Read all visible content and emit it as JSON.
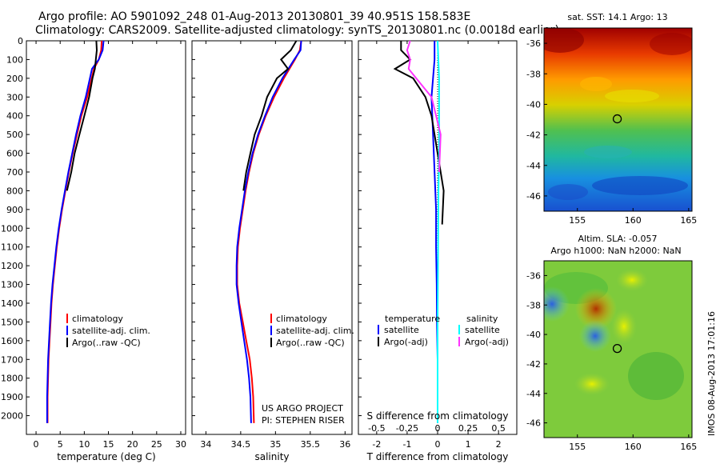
{
  "header": {
    "line1": "Argo profile: AO 5901092_248 01-Aug-2013 20130801_39 40.951S 158.583E",
    "line2": "Climatology: CARS2009. Satellite-adjusted climatology: synTS_20130801.nc (0.0018d earlier)"
  },
  "colors": {
    "climatology": "#ff0000",
    "satellite": "#0000ff",
    "argo": "#000000",
    "sal_satellite": "#00ffff",
    "sal_argo": "#ff33ff"
  },
  "legends": {
    "temperature": [
      "climatology",
      "satellite-adj. clim.",
      "Argo(..raw -QC)"
    ],
    "salinity": [
      "climatology",
      "satellite-adj. clim.",
      "Argo(..raw -QC)"
    ],
    "difference": {
      "temp_title": "temperature",
      "sal_title": "salinity",
      "temp_items": [
        "satellite",
        "Argo(-adj)"
      ],
      "sal_items": [
        "satellite",
        "Argo(-adj)"
      ]
    }
  },
  "notes": {
    "project": "US ARGO PROJECT",
    "pi": "PI: STEPHEN RISER",
    "s_diff_label": "S difference from climatology",
    "imos_stamp": "IMOS 08-Aug-2013 17:01:16"
  },
  "chart_data": [
    {
      "type": "line",
      "xlabel": "temperature (deg C)",
      "ylabel": "",
      "xlim": [
        -2,
        31
      ],
      "ylim": [
        2100,
        0
      ],
      "y_reversed": true,
      "xticks": [
        0,
        5,
        10,
        15,
        20,
        25,
        30
      ],
      "yticks": [
        0,
        100,
        200,
        300,
        400,
        500,
        600,
        700,
        800,
        900,
        1000,
        1100,
        1200,
        1300,
        1400,
        1500,
        1600,
        1700,
        1800,
        1900,
        2000
      ],
      "series": [
        {
          "name": "climatology",
          "color": "#ff0000",
          "x": [
            13.6,
            13.5,
            13.0,
            12.0,
            10.6,
            9.4,
            8.5,
            7.6,
            6.8,
            6.1,
            5.4,
            4.8,
            4.3,
            3.9,
            3.5,
            3.2,
            3.0,
            2.8,
            2.6,
            2.5,
            2.4,
            2.4
          ],
          "y": [
            0,
            50,
            100,
            150,
            300,
            400,
            500,
            600,
            700,
            800,
            900,
            1000,
            1100,
            1200,
            1300,
            1400,
            1500,
            1600,
            1700,
            1800,
            1900,
            2040
          ]
        },
        {
          "name": "satellite-adj. clim.",
          "color": "#0000ff",
          "x": [
            14.0,
            13.8,
            13.0,
            11.6,
            10.3,
            9.2,
            8.3,
            7.5,
            6.7,
            6.0,
            5.3,
            4.7,
            4.2,
            3.8,
            3.4,
            3.1,
            2.9,
            2.7,
            2.5,
            2.4,
            2.3,
            2.3
          ],
          "y": [
            0,
            50,
            100,
            150,
            300,
            400,
            500,
            600,
            700,
            800,
            900,
            1000,
            1100,
            1200,
            1300,
            1400,
            1500,
            1600,
            1700,
            1800,
            1900,
            2040
          ]
        },
        {
          "name": "Argo(..raw -QC)",
          "color": "#000000",
          "x": [
            12.5,
            12.6,
            12.4,
            12.2,
            11.7,
            11.0,
            10.0,
            9.0,
            8.0,
            7.3,
            6.4
          ],
          "y": [
            0,
            50,
            100,
            150,
            200,
            300,
            400,
            500,
            600,
            700,
            800
          ]
        }
      ]
    },
    {
      "type": "line",
      "xlabel": "salinity",
      "ylabel": "",
      "xlim": [
        33.8,
        36.1
      ],
      "ylim": [
        2100,
        0
      ],
      "y_reversed": true,
      "xticks": [
        34,
        34.5,
        35,
        35.5,
        36
      ],
      "series": [
        {
          "name": "climatology",
          "color": "#ff0000",
          "x": [
            35.37,
            35.35,
            35.28,
            35.12,
            34.98,
            34.86,
            34.76,
            34.68,
            34.62,
            34.57,
            34.53,
            34.49,
            34.46,
            34.45,
            34.45,
            34.48,
            34.53,
            34.58,
            34.63,
            34.66,
            34.68,
            34.69
          ],
          "y": [
            0,
            50,
            100,
            200,
            300,
            400,
            500,
            600,
            700,
            800,
            900,
            1000,
            1100,
            1200,
            1300,
            1400,
            1500,
            1600,
            1700,
            1800,
            1900,
            2040
          ]
        },
        {
          "name": "satellite-adj. clim.",
          "color": "#0000ff",
          "x": [
            35.37,
            35.36,
            35.27,
            35.1,
            34.96,
            34.85,
            34.75,
            34.67,
            34.61,
            34.56,
            34.52,
            34.48,
            34.45,
            34.44,
            34.44,
            34.47,
            34.51,
            34.55,
            34.59,
            34.62,
            34.64,
            34.65
          ],
          "y": [
            0,
            50,
            100,
            200,
            300,
            400,
            500,
            600,
            700,
            800,
            900,
            1000,
            1100,
            1200,
            1300,
            1400,
            1500,
            1600,
            1700,
            1800,
            1900,
            2040
          ]
        },
        {
          "name": "Argo(..raw -QC)",
          "color": "#000000",
          "x": [
            35.3,
            35.22,
            35.08,
            35.18,
            35.02,
            34.88,
            34.8,
            34.7,
            34.64,
            34.58,
            34.54
          ],
          "y": [
            0,
            50,
            100,
            150,
            200,
            300,
            400,
            500,
            600,
            700,
            800
          ]
        }
      ]
    },
    {
      "type": "line",
      "xlabel": "T difference from climatology",
      "ylabel": "",
      "xlim": [
        -2.6,
        2.6
      ],
      "ylim": [
        2100,
        0
      ],
      "y_reversed": true,
      "xticks": [
        -2,
        -1,
        0,
        1,
        2
      ],
      "secondary_xlabel": "S difference from climatology",
      "secondary_xticks": [
        -0.5,
        -0.25,
        0,
        0.25,
        0.5
      ],
      "series": [
        {
          "name": "temperature satellite",
          "color": "#0000ff",
          "x": [
            -0.1,
            -0.1,
            -0.2,
            -0.15,
            -0.1,
            -0.05,
            -0.05,
            -0.03,
            -0.02,
            0,
            0
          ],
          "y": [
            0,
            100,
            300,
            500,
            700,
            900,
            1100,
            1300,
            1500,
            1700,
            2040
          ]
        },
        {
          "name": "temperature Argo(-adj)",
          "color": "#000000",
          "x": [
            -1.2,
            -1.2,
            -0.9,
            -1.4,
            -0.8,
            -0.4,
            -0.2,
            -0.1,
            0,
            0.1,
            0.2,
            0.15
          ],
          "y": [
            0,
            50,
            100,
            150,
            200,
            300,
            400,
            500,
            600,
            700,
            800,
            980
          ]
        },
        {
          "name": "salinity satellite",
          "color": "#00ffff",
          "x": [
            0,
            0.05,
            0.05,
            0.05,
            0.03,
            0.02,
            0,
            0
          ],
          "y": [
            0,
            200,
            400,
            600,
            800,
            1000,
            1500,
            2040
          ]
        },
        {
          "name": "salinity Argo(-adj)",
          "color": "#ff33ff",
          "x": [
            -0.9,
            -1.0,
            -0.9,
            -0.95,
            -0.7,
            -0.2,
            0.1,
            0.05
          ],
          "y": [
            0,
            50,
            100,
            150,
            200,
            300,
            500,
            700
          ]
        }
      ]
    }
  ],
  "maps": [
    {
      "title": "sat. SST: 14.1 Argo: 13",
      "xticks": [
        155,
        160,
        165
      ],
      "yticks": [
        -36,
        -38,
        -40,
        -42,
        -44,
        -46
      ],
      "xlim": [
        152,
        165.3
      ],
      "ylim": [
        -47,
        -35
      ],
      "argo_lon": 158.583,
      "argo_lat": -40.951
    },
    {
      "title": "Altim. SLA: -0.057",
      "subtitle": "Argo h1000: NaN h2000: NaN",
      "xticks": [
        155,
        160,
        165
      ],
      "yticks": [
        -36,
        -38,
        -40,
        -42,
        -44,
        -46
      ],
      "xlim": [
        152,
        165.3
      ],
      "ylim": [
        -47,
        -35
      ],
      "argo_lon": 158.583,
      "argo_lat": -40.951
    }
  ]
}
